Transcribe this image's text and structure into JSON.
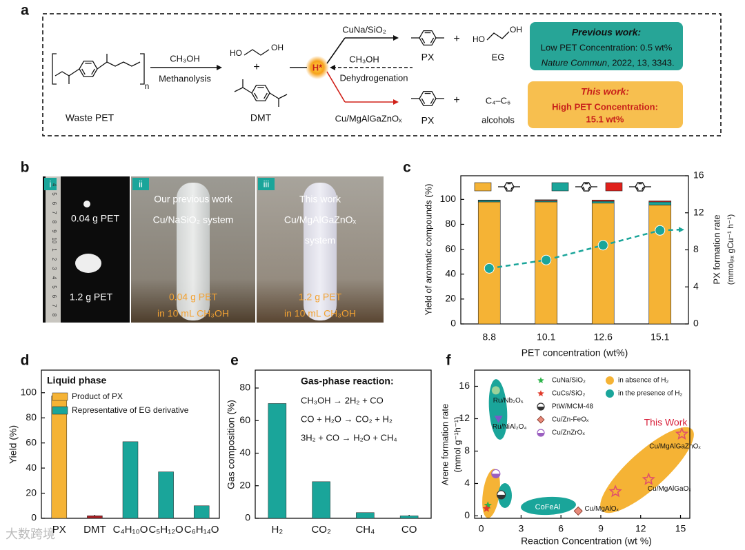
{
  "panels": [
    "a",
    "b",
    "c",
    "d",
    "e",
    "f"
  ],
  "scheme": {
    "reagent": "CH₃OH",
    "step": "Methanolysis",
    "feed": "Waste PET",
    "repeat": "n",
    "eg_ho": "HO",
    "eg_oh": "OH",
    "plus": "+",
    "dmt": "DMT",
    "intermediate": "H*",
    "cat_prev": "CuNa/SiO₂",
    "reverse_reagent": "CH₃OH",
    "reverse_step": "Dehydrogenation",
    "cat_this": "Cu/MgAlGaZnOₓ",
    "top_products": [
      "PX",
      "+",
      "EG"
    ],
    "top_eg_ho": "HO",
    "top_eg_oh": "OH",
    "bottom_products": [
      "PX",
      "+",
      "C₄–C₆",
      "alcohols"
    ],
    "previous": {
      "title": "Previous work:",
      "line1": "Low PET Concentration: 0.5 wt%",
      "journal": "Nature Commun",
      "ref": ", 2022, 13, 3343."
    },
    "this": {
      "title": "This work:",
      "line1": "High PET Concentration:",
      "line2": "15.1 wt%"
    }
  },
  "photos": [
    {
      "tag": "i",
      "texts": [
        "0.04 g PET",
        "1.2 g PET"
      ],
      "ruler": [
        "4",
        "5",
        "6",
        "7",
        "8",
        "9",
        "10",
        "1",
        "2",
        "3",
        "4",
        "5",
        "6",
        "7",
        "8"
      ]
    },
    {
      "tag": "ii",
      "texts": [
        "Our previous work",
        "Cu/NaSiO₂ system",
        "0.04 g PET",
        "in 10 mL CH₃OH"
      ]
    },
    {
      "tag": "iii",
      "texts": [
        "This work",
        "Cu/MgAlGaZnOₓ",
        "system",
        "1.2 g PET",
        "in 10 mL CH₃OH"
      ]
    }
  ],
  "watermark": "大数跨境",
  "chart_data": [
    {
      "type": "bar",
      "stacked": true,
      "categories": [
        "8.8",
        "10.1",
        "12.6",
        "15.1"
      ],
      "xlabel": "PET concentration (wt%)",
      "ylabel": "Yield of aromatic compounds (%)",
      "y2label": "PX formation rate",
      "y2unit": "(mmolₚₓ gCu⁻¹ h⁻¹)",
      "ylim": [
        0,
        119
      ],
      "yticks": [
        0,
        20,
        40,
        60,
        80,
        100
      ],
      "y2lim": [
        0,
        16
      ],
      "y2ticks": [
        0,
        4,
        8,
        12,
        16
      ],
      "series": [
        {
          "color": "#f5b335",
          "values": [
            98,
            98,
            97,
            95.5
          ]
        },
        {
          "color": "#1aa59a",
          "values": [
            1.2,
            1.0,
            1.5,
            2.5
          ]
        },
        {
          "color": "#e0201b",
          "values": [
            0.3,
            0.7,
            1.0,
            0.8
          ]
        },
        {
          "type": "line",
          "axis": "y2",
          "color": "#1aa59a",
          "values": [
            6.0,
            6.9,
            8.5,
            10.1
          ]
        }
      ]
    },
    {
      "type": "bar",
      "title": "Liquid phase",
      "categories": [
        "PX",
        "DMT",
        "C₄H₁₀O",
        "C₅H₁₂O",
        "C₆H₁₄O"
      ],
      "values": [
        97.5,
        2,
        61,
        37,
        10
      ],
      "colors": [
        "#f5b335",
        "#a51e22",
        "#1aa59a",
        "#1aa59a",
        "#1aa59a"
      ],
      "legend": [
        {
          "name": "Product of PX",
          "color": "#f5b335"
        },
        {
          "name": "Representative of EG derivative",
          "color": "#1aa59a"
        }
      ],
      "ylabel": "Yield (%)",
      "ylim": [
        0,
        118
      ],
      "yticks": [
        0,
        20,
        40,
        60,
        80,
        100
      ]
    },
    {
      "type": "bar",
      "title": "Gas-phase reaction:",
      "annotations": [
        "CH₃OH → 2H₂ + CO",
        "CO + H₂O → CO₂ + H₂",
        "3H₂ + CO → H₂O + CH₄"
      ],
      "categories": [
        "H₂",
        "CO₂",
        "CH₄",
        "CO"
      ],
      "values": [
        70.5,
        22.5,
        3.5,
        1.5
      ],
      "color": "#1aa59a",
      "ylabel": "Gas composition (%)",
      "ylim": [
        0,
        91
      ],
      "yticks": [
        0,
        20,
        40,
        60,
        80
      ]
    },
    {
      "type": "scatter",
      "xlabel": "Reaction Concentration (wt %)",
      "ylabel": "Arene formation rate",
      "yunit": "(mmol g⁻¹h⁻¹)",
      "xlim": [
        -0.5,
        15.7
      ],
      "ylim": [
        -0.3,
        18
      ],
      "xticks": [
        0,
        3,
        6,
        9,
        12,
        15
      ],
      "yticks": [
        0,
        4,
        8,
        12,
        16
      ],
      "series": [
        {
          "name": "CuNa/SiO₂",
          "marker": "star",
          "color": "#2db34a",
          "x": [
            0.5
          ],
          "y": [
            1.3
          ]
        },
        {
          "name": "CuCs/SiO₂",
          "marker": "star",
          "color": "#e03a2a",
          "x": [
            0.4
          ],
          "y": [
            0.9
          ]
        },
        {
          "name": "PtW/MCM-48",
          "marker": "half",
          "color": "#333333",
          "x": [
            1.5
          ],
          "y": [
            2.6
          ]
        },
        {
          "name": "Cu/Zn-FeOₓ",
          "marker": "diamond",
          "color": "#e88a7a",
          "x": [
            7.3
          ],
          "y": [
            0.6
          ]
        },
        {
          "name": "Cu/ZnZrOₓ",
          "marker": "half",
          "color": "#9b5fc0",
          "x": [
            1.1
          ],
          "y": [
            5.2
          ]
        },
        {
          "marker": "circle",
          "color": "#9ad29a",
          "x": [
            1.1
          ],
          "y": [
            15.5
          ],
          "point_labels": [
            "Ru/Nb₂O₅"
          ]
        },
        {
          "marker": "triangle",
          "color": "#7a5ac8",
          "x": [
            1.3
          ],
          "y": [
            12.0
          ],
          "point_labels": [
            "Ru/NiAl₂O₄"
          ]
        },
        {
          "marker": "openstar",
          "color": "#e0506a",
          "x": [
            10.1,
            12.6,
            15.1
          ],
          "y": [
            3.0,
            4.5,
            10.1
          ],
          "point_labels": [
            "Cu/MgAlOₓ",
            "Cu/MgAlGaOₓ",
            "Cu/MgAlGaZnOₓ"
          ]
        }
      ],
      "regions": [
        {
          "name": "in absence of H₂",
          "color": "#f5b335"
        },
        {
          "name": "in the presence of H₂",
          "color": "#1aa59a"
        }
      ],
      "annotations": [
        "CoFeAl",
        "This Work"
      ]
    }
  ]
}
